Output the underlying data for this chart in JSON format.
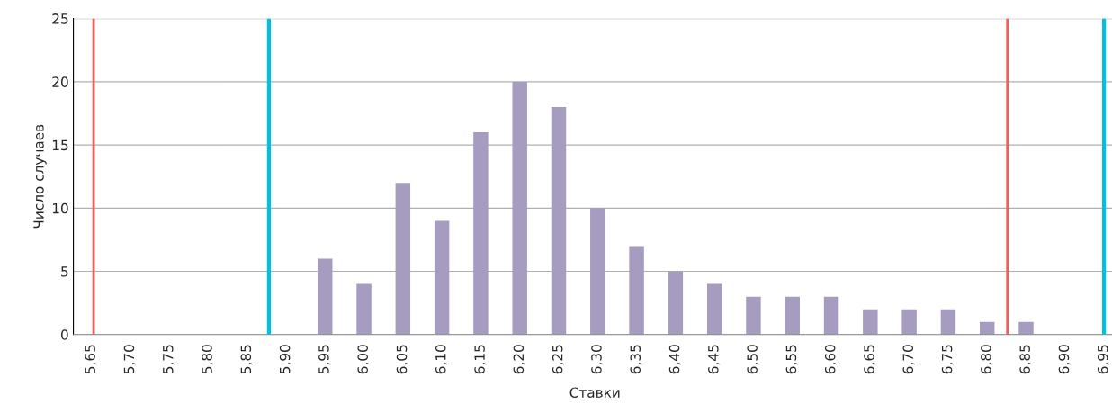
{
  "chart_data": {
    "type": "bar",
    "xlabel": "Ставки",
    "ylabel": "Число случаев",
    "x": [
      5.65,
      5.7,
      5.75,
      5.8,
      5.85,
      5.9,
      5.95,
      6.0,
      6.05,
      6.1,
      6.15,
      6.2,
      6.25,
      6.3,
      6.35,
      6.4,
      6.45,
      6.5,
      6.55,
      6.6,
      6.65,
      6.7,
      6.75,
      6.8,
      6.85,
      6.9,
      6.95
    ],
    "values": [
      0,
      0,
      0,
      0,
      0,
      0,
      6,
      4,
      12,
      9,
      16,
      20,
      18,
      10,
      7,
      5,
      4,
      3,
      3,
      3,
      2,
      2,
      2,
      1,
      1,
      0,
      0
    ],
    "color": "#a59cbf",
    "xlim": [
      5.627,
      6.966
    ],
    "xticks": [
      {
        "value": 5.65,
        "label": "5,65"
      },
      {
        "value": 5.7,
        "label": "5,70"
      },
      {
        "value": 5.75,
        "label": "5,75"
      },
      {
        "value": 5.8,
        "label": "5,80"
      },
      {
        "value": 5.85,
        "label": "5,85"
      },
      {
        "value": 5.9,
        "label": "5,90"
      },
      {
        "value": 5.95,
        "label": "5,95"
      },
      {
        "value": 6.0,
        "label": "6,00"
      },
      {
        "value": 6.05,
        "label": "6,05"
      },
      {
        "value": 6.1,
        "label": "6,10"
      },
      {
        "value": 6.15,
        "label": "6,15"
      },
      {
        "value": 6.2,
        "label": "6,20"
      },
      {
        "value": 6.25,
        "label": "6,25"
      },
      {
        "value": 6.3,
        "label": "6,30"
      },
      {
        "value": 6.35,
        "label": "6,35"
      },
      {
        "value": 6.4,
        "label": "6,40"
      },
      {
        "value": 6.45,
        "label": "6,45"
      },
      {
        "value": 6.5,
        "label": "6,50"
      },
      {
        "value": 6.55,
        "label": "6,55"
      },
      {
        "value": 6.6,
        "label": "6,60"
      },
      {
        "value": 6.65,
        "label": "6,65"
      },
      {
        "value": 6.7,
        "label": "6,70"
      },
      {
        "value": 6.75,
        "label": "6,75"
      },
      {
        "value": 6.8,
        "label": "6,80"
      },
      {
        "value": 6.85,
        "label": "6,85"
      },
      {
        "value": 6.9,
        "label": "6,90"
      },
      {
        "value": 6.95,
        "label": "6,95"
      }
    ],
    "ylim": [
      0,
      25
    ],
    "yticks": [
      0,
      5,
      10,
      15,
      20,
      25
    ],
    "grid": "y",
    "ref_lines": [
      {
        "axis": "x",
        "value": 5.653,
        "color": "#f45b5b"
      },
      {
        "axis": "x",
        "value": 5.878,
        "color": "#00bfe8"
      },
      {
        "axis": "x",
        "value": 6.826,
        "color": "#f45b5b"
      },
      {
        "axis": "x",
        "value": 6.95,
        "color": "#00bfe8"
      }
    ]
  }
}
